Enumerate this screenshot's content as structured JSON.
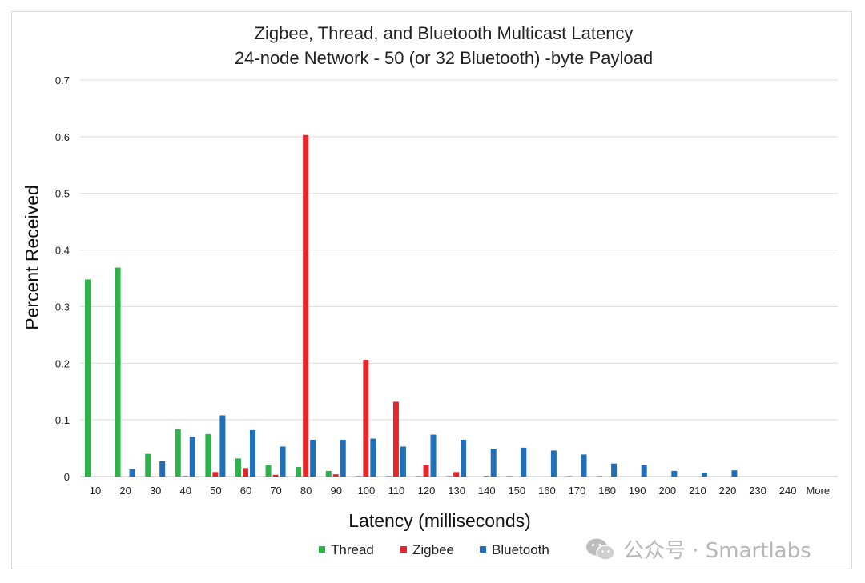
{
  "chart_data": {
    "type": "bar",
    "title": "Zigbee, Thread, and Bluetooth Multicast Latency",
    "subtitle": "24-node Network - 50 (or 32 Bluetooth) -byte Payload",
    "xlabel": "Latency (milliseconds)",
    "ylabel": "Percent Received",
    "ylim": [
      0,
      0.7
    ],
    "yticks": [
      "0",
      "0.1",
      "0.2",
      "0.3",
      "0.4",
      "0.5",
      "0.6",
      "0.7"
    ],
    "grid": true,
    "legend_position": "bottom",
    "categories": [
      "10",
      "20",
      "30",
      "40",
      "50",
      "60",
      "70",
      "80",
      "90",
      "100",
      "110",
      "120",
      "130",
      "140",
      "150",
      "160",
      "170",
      "180",
      "190",
      "200",
      "210",
      "220",
      "230",
      "240",
      "More"
    ],
    "series": [
      {
        "name": "Thread",
        "color": "#2db34a",
        "values": [
          0.348,
          0.369,
          0.04,
          0.084,
          0.075,
          0.032,
          0.02,
          0.017,
          0.01,
          0.001,
          0.001,
          0.001,
          0.001,
          0,
          0.001,
          0,
          0.001,
          0.001,
          0,
          0,
          0,
          0,
          0,
          0,
          0
        ]
      },
      {
        "name": "Zigbee",
        "color": "#e5262b",
        "values": [
          0,
          0,
          0,
          0.001,
          0.008,
          0.015,
          0.003,
          0.603,
          0.004,
          0.206,
          0.132,
          0.02,
          0.008,
          0.001,
          0,
          0,
          0,
          0,
          0,
          0,
          0,
          0,
          0,
          0,
          0
        ]
      },
      {
        "name": "Bluetooth",
        "color": "#1f6fba",
        "values": [
          0,
          0.013,
          0.027,
          0.07,
          0.108,
          0.082,
          0.053,
          0.065,
          0.065,
          0.067,
          0.053,
          0.074,
          0.065,
          0.049,
          0.051,
          0.046,
          0.039,
          0.023,
          0.021,
          0.01,
          0.006,
          0.011,
          0,
          0,
          0
        ]
      }
    ]
  },
  "watermark": {
    "text": "公众号 · Smartlabs",
    "icon": "wechat-icon"
  }
}
